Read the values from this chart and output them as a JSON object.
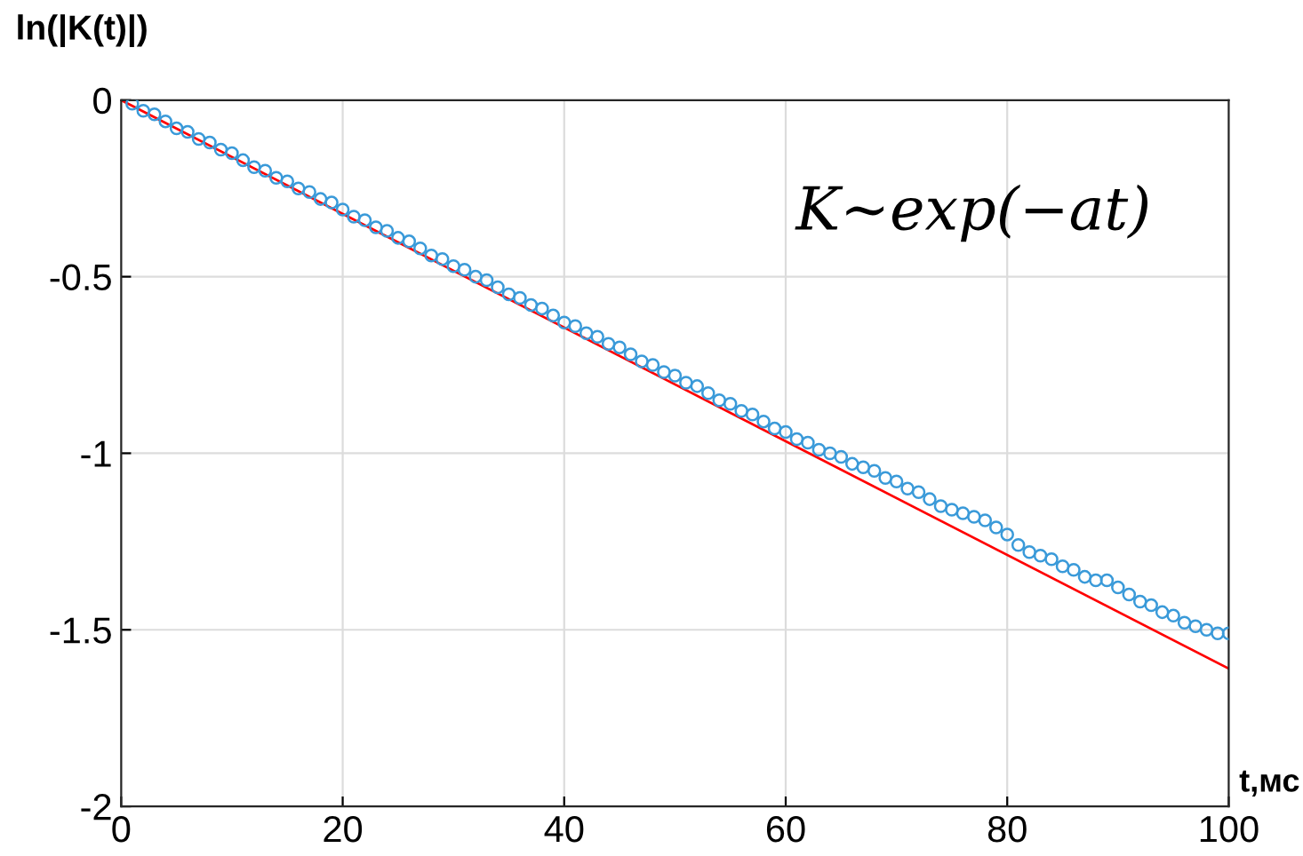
{
  "chart_data": {
    "type": "line",
    "xlabel": "t,мс",
    "ylabel": "ln(|K(t)|)",
    "annotations": [
      "K∼exp(−at)"
    ],
    "xlim": [
      0,
      100
    ],
    "ylim": [
      -2,
      0
    ],
    "xticks": [
      0,
      20,
      40,
      60,
      80,
      100
    ],
    "yticks": [
      -2,
      -1.5,
      -1,
      -0.5,
      0
    ],
    "grid": true,
    "legend": false,
    "series": [
      {
        "type": "scatter",
        "color": "#3a9ad9",
        "marker": "circle",
        "x": [
          1,
          2,
          3,
          4,
          5,
          6,
          7,
          8,
          9,
          10,
          11,
          12,
          13,
          14,
          15,
          16,
          17,
          18,
          19,
          20,
          21,
          22,
          23,
          24,
          25,
          26,
          27,
          28,
          29,
          30,
          31,
          32,
          33,
          34,
          35,
          36,
          37,
          38,
          39,
          40,
          41,
          42,
          43,
          44,
          45,
          46,
          47,
          48,
          49,
          50,
          51,
          52,
          53,
          54,
          55,
          56,
          57,
          58,
          59,
          60,
          61,
          62,
          63,
          64,
          65,
          66,
          67,
          68,
          69,
          70,
          71,
          72,
          73,
          74,
          75,
          76,
          77,
          78,
          79,
          80,
          81,
          82,
          83,
          84,
          85,
          86,
          87,
          88,
          89,
          90,
          91,
          92,
          93,
          94,
          95,
          96,
          97,
          98,
          99,
          100
        ],
        "values": [
          -0.01,
          -0.03,
          -0.04,
          -0.06,
          -0.08,
          -0.09,
          -0.11,
          -0.12,
          -0.14,
          -0.15,
          -0.17,
          -0.19,
          -0.2,
          -0.22,
          -0.23,
          -0.25,
          -0.26,
          -0.28,
          -0.29,
          -0.31,
          -0.33,
          -0.34,
          -0.36,
          -0.37,
          -0.39,
          -0.4,
          -0.42,
          -0.44,
          -0.45,
          -0.47,
          -0.48,
          -0.5,
          -0.51,
          -0.53,
          -0.55,
          -0.56,
          -0.58,
          -0.59,
          -0.61,
          -0.63,
          -0.64,
          -0.66,
          -0.67,
          -0.69,
          -0.7,
          -0.72,
          -0.74,
          -0.75,
          -0.77,
          -0.78,
          -0.8,
          -0.81,
          -0.83,
          -0.85,
          -0.86,
          -0.88,
          -0.89,
          -0.91,
          -0.93,
          -0.94,
          -0.96,
          -0.97,
          -0.99,
          -1.0,
          -1.01,
          -1.03,
          -1.04,
          -1.05,
          -1.07,
          -1.08,
          -1.1,
          -1.11,
          -1.13,
          -1.15,
          -1.16,
          -1.17,
          -1.18,
          -1.19,
          -1.21,
          -1.23,
          -1.26,
          -1.28,
          -1.29,
          -1.3,
          -1.32,
          -1.33,
          -1.35,
          -1.36,
          -1.36,
          -1.38,
          -1.4,
          -1.42,
          -1.43,
          -1.45,
          -1.46,
          -1.48,
          -1.49,
          -1.5,
          -1.51,
          -1.51
        ]
      },
      {
        "color": "#ff0000",
        "line_style": "solid",
        "x": [
          0,
          100
        ],
        "values": [
          0,
          -1.61
        ]
      }
    ]
  }
}
